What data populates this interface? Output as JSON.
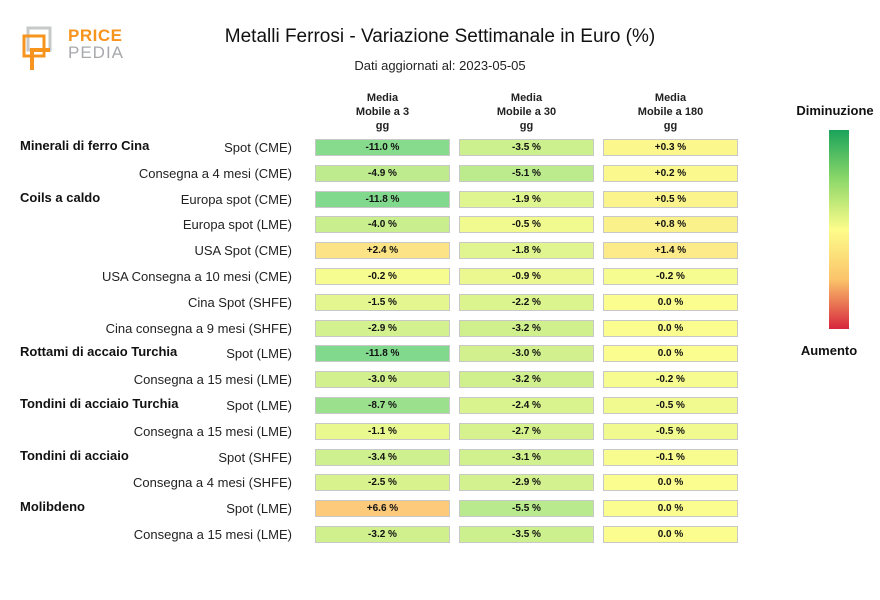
{
  "header": {
    "brand_line1": "PRICE",
    "brand_line2": "PEDIA",
    "title": "Metalli Ferrosi - Variazione Settimanale in Euro (%)",
    "subtitle": "Dati aggiornati al: 2023-05-05"
  },
  "legend": {
    "top_label": "Diminuzione",
    "bottom_label": "Aumento",
    "colors": [
      "#1aa35a",
      "#8ed86a",
      "#fdfd8a",
      "#fbc46a",
      "#d7263d"
    ]
  },
  "chart_data": {
    "type": "table",
    "title": "Metalli Ferrosi - Variazione Settimanale in Euro (%)",
    "columns": [
      {
        "line1": "Media",
        "line2": "Mobile a 3",
        "line3": "gg"
      },
      {
        "line1": "Media",
        "line2": "Mobile a 30",
        "line3": "gg"
      },
      {
        "line1": "Media",
        "line2": "Mobile a 180",
        "line3": "gg"
      }
    ],
    "rows": [
      {
        "group": "Minerali di ferro Cina",
        "label": "Spot (CME)",
        "values": [
          -11.0,
          -3.5,
          0.3
        ],
        "display": [
          "-11.0 %",
          "-3.5 %",
          "+0.3 %"
        ]
      },
      {
        "group": "",
        "label": "Consegna a 4 mesi (CME)",
        "values": [
          -4.9,
          -5.1,
          0.2
        ],
        "display": [
          "-4.9 %",
          "-5.1 %",
          "+0.2 %"
        ]
      },
      {
        "group": "Coils a caldo",
        "label": "Europa spot (CME)",
        "values": [
          -11.8,
          -1.9,
          0.5
        ],
        "display": [
          "-11.8 %",
          "-1.9 %",
          "+0.5 %"
        ]
      },
      {
        "group": "",
        "label": "Europa spot (LME)",
        "values": [
          -4.0,
          -0.5,
          0.8
        ],
        "display": [
          "-4.0 %",
          "-0.5 %",
          "+0.8 %"
        ]
      },
      {
        "group": "",
        "label": "USA Spot (CME)",
        "values": [
          2.4,
          -1.8,
          1.4
        ],
        "display": [
          "+2.4 %",
          "-1.8 %",
          "+1.4 %"
        ]
      },
      {
        "group": "",
        "label": "USA Consegna a 10 mesi (CME)",
        "values": [
          -0.2,
          -0.9,
          -0.2
        ],
        "display": [
          "-0.2 %",
          "-0.9 %",
          "-0.2 %"
        ]
      },
      {
        "group": "",
        "label": "Cina Spot (SHFE)",
        "values": [
          -1.5,
          -2.2,
          0.0
        ],
        "display": [
          "-1.5 %",
          "-2.2 %",
          "0.0 %"
        ]
      },
      {
        "group": "",
        "label": "Cina consegna a 9 mesi (SHFE)",
        "values": [
          -2.9,
          -3.2,
          0.0
        ],
        "display": [
          "-2.9 %",
          "-3.2 %",
          "0.0 %"
        ]
      },
      {
        "group": "Rottami di accaio Turchia",
        "label": "Spot (LME)",
        "values": [
          -11.8,
          -3.0,
          0.0
        ],
        "display": [
          "-11.8 %",
          "-3.0 %",
          "0.0 %"
        ]
      },
      {
        "group": "",
        "label": "Consegna a 15 mesi (LME)",
        "values": [
          -3.0,
          -3.2,
          -0.2
        ],
        "display": [
          "-3.0 %",
          "-3.2 %",
          "-0.2 %"
        ]
      },
      {
        "group": "Tondini di acciaio Turchia",
        "label": "Spot (LME)",
        "values": [
          -8.7,
          -2.4,
          -0.5
        ],
        "display": [
          "-8.7 %",
          "-2.4 %",
          "-0.5 %"
        ]
      },
      {
        "group": "",
        "label": "Consegna a 15 mesi (LME)",
        "values": [
          -1.1,
          -2.7,
          -0.5
        ],
        "display": [
          "-1.1 %",
          "-2.7 %",
          "-0.5 %"
        ]
      },
      {
        "group": "Tondini di acciaio",
        "label": "Spot (SHFE)",
        "values": [
          -3.4,
          -3.1,
          -0.1
        ],
        "display": [
          "-3.4 %",
          "-3.1 %",
          "-0.1 %"
        ]
      },
      {
        "group": "",
        "label": "Consegna a 4 mesi (SHFE)",
        "values": [
          -2.5,
          -2.9,
          0.0
        ],
        "display": [
          "-2.5 %",
          "-2.9 %",
          "0.0 %"
        ]
      },
      {
        "group": "Molibdeno",
        "label": "Spot (LME)",
        "values": [
          6.6,
          -5.5,
          0.0
        ],
        "display": [
          "+6.6 %",
          "-5.5 %",
          "0.0 %"
        ]
      },
      {
        "group": "",
        "label": "Consegna a 15 mesi (LME)",
        "values": [
          -3.2,
          -3.5,
          0.0
        ],
        "display": [
          "-3.2 %",
          "-3.5 %",
          "0.0 %"
        ]
      }
    ]
  }
}
